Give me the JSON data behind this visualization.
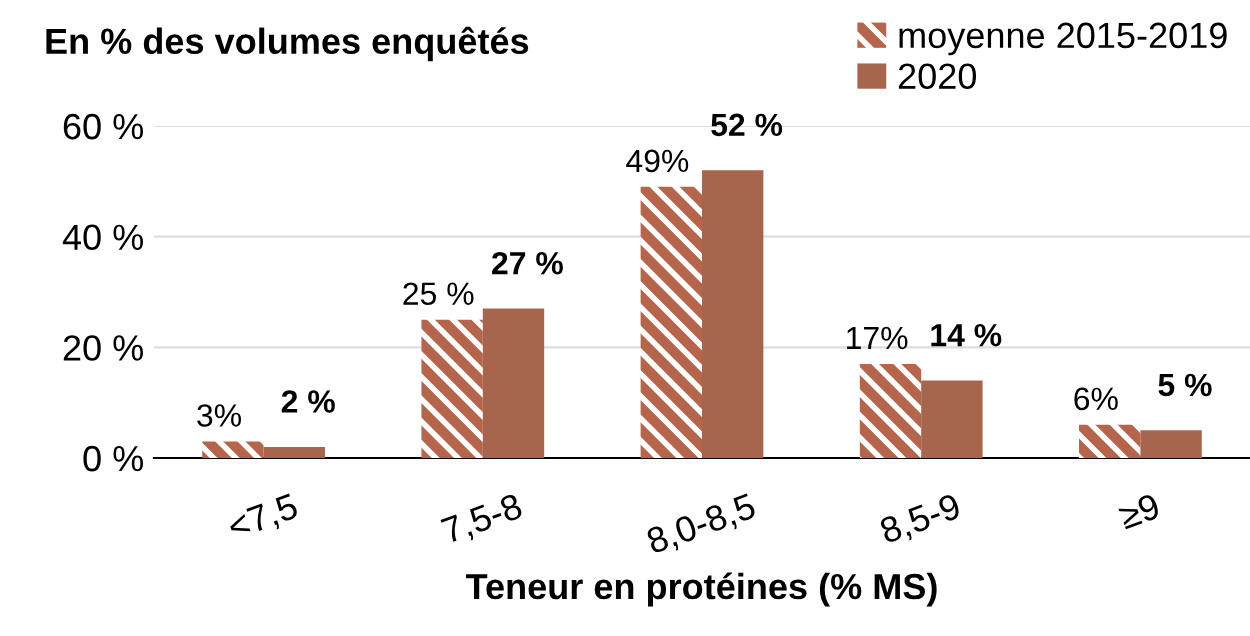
{
  "chart_data": {
    "type": "bar",
    "title": "En % des volumes enquêtés",
    "xlabel": "Teneur en protéines (% MS)",
    "categories": [
      "<7,5",
      "7,5-8",
      "8,0-8,5",
      "8,5-9",
      "≥9"
    ],
    "series": [
      {
        "name": "moyenne 2015-2019",
        "color": "#b5654b",
        "values": [
          3,
          25,
          49,
          17,
          6
        ],
        "value_labels": [
          "3%",
          "25 %",
          "49%",
          "17%",
          "6%"
        ]
      },
      {
        "name": "2020",
        "color": "#a8654e",
        "values": [
          2,
          27,
          52,
          14,
          5
        ],
        "value_labels": [
          "2 %",
          "27 %",
          "52 %",
          "14 %",
          "5 %"
        ]
      }
    ],
    "ylim": [
      0,
      60
    ],
    "yticks": [
      {
        "value": 0,
        "label": "0 %"
      },
      {
        "value": 20,
        "label": "20 %"
      },
      {
        "value": 40,
        "label": "40 %"
      },
      {
        "value": 60,
        "label": "60 %"
      }
    ],
    "grid": "y",
    "legend": "top right"
  }
}
